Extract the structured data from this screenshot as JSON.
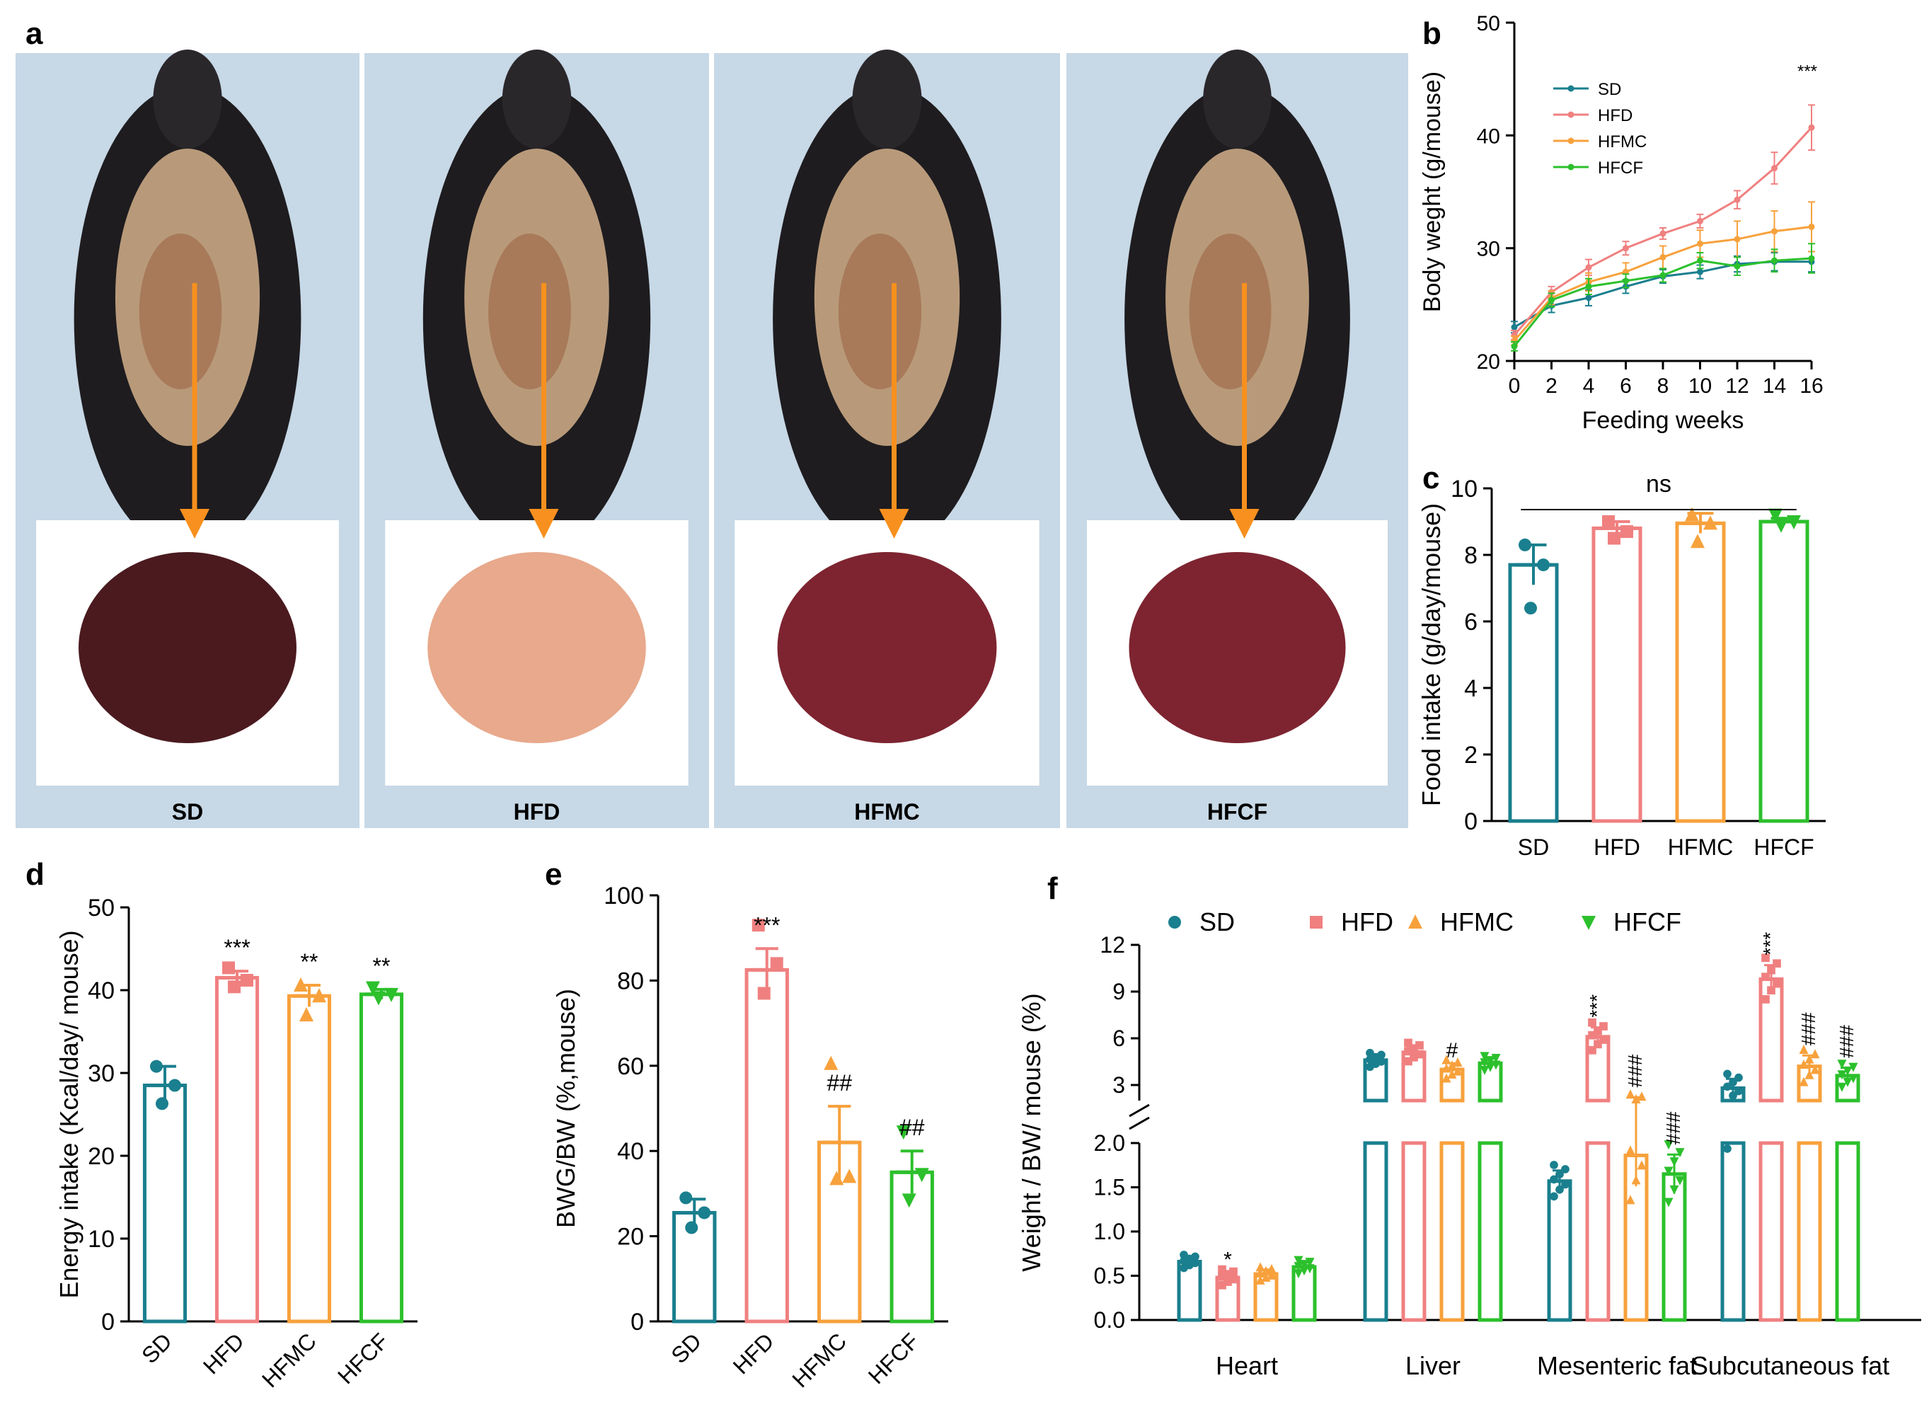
{
  "colors": {
    "SD": "#1a7f8e",
    "HFD": "#f08080",
    "HFMC": "#f7a13c",
    "HFCF": "#2cc02c",
    "arrow": "#f7901e",
    "photo_bg": "#c7d8e6",
    "liver_dark": "#4a1a1f",
    "liver_red": "#7d2430",
    "liver_light": "#e8a98c"
  },
  "panel_a": {
    "letter": "a",
    "groups": [
      {
        "label": "SD",
        "liver": "liver_dark"
      },
      {
        "label": "HFD",
        "liver": "liver_light"
      },
      {
        "label": "HFMC",
        "liver": "liver_red"
      },
      {
        "label": "HFCF",
        "liver": "liver_red"
      }
    ]
  },
  "chart_data": [
    {
      "panel": "b",
      "type": "line",
      "letter": "b",
      "xlabel": "Feeding weeks",
      "ylabel": "Body weght (g/mouse)",
      "xlim": [
        0,
        16
      ],
      "ylim": [
        20,
        50
      ],
      "xticks": [
        "0",
        "2",
        "4",
        "6",
        "8",
        "10",
        "12",
        "14",
        "16"
      ],
      "yticks": [
        "20",
        "30",
        "40",
        "50"
      ],
      "x": [
        0,
        2,
        4,
        6,
        8,
        10,
        12,
        14,
        16
      ],
      "series": [
        {
          "name": "SD",
          "color": "SD",
          "values": [
            23.0,
            24.9,
            25.6,
            26.6,
            27.5,
            27.9,
            28.6,
            28.8,
            28.8
          ],
          "err": [
            0.5,
            0.6,
            0.7,
            0.6,
            0.6,
            0.6,
            0.7,
            0.8,
            0.9
          ]
        },
        {
          "name": "HFD",
          "color": "HFD",
          "values": [
            22.3,
            26.1,
            28.3,
            30.0,
            31.3,
            32.4,
            34.3,
            37.1,
            40.7
          ],
          "err": [
            0.4,
            0.5,
            0.7,
            0.6,
            0.5,
            0.6,
            0.8,
            1.4,
            2.0
          ]
        },
        {
          "name": "HFMC",
          "color": "HFMC",
          "values": [
            21.8,
            25.6,
            27.0,
            27.9,
            29.2,
            30.4,
            30.8,
            31.5,
            31.9
          ],
          "err": [
            0.4,
            0.6,
            0.8,
            0.8,
            1.0,
            1.2,
            1.6,
            1.8,
            2.2
          ]
        },
        {
          "name": "HFCF",
          "color": "HFCF",
          "values": [
            21.3,
            25.4,
            26.6,
            27.1,
            27.6,
            28.9,
            28.4,
            28.9,
            29.1
          ],
          "err": [
            0.4,
            0.6,
            0.7,
            0.6,
            0.6,
            0.7,
            0.8,
            1.0,
            1.3
          ]
        }
      ],
      "legend": "top-left",
      "annotation": "***"
    },
    {
      "panel": "c",
      "type": "bar",
      "letter": "c",
      "categories": [
        "SD",
        "HFD",
        "HFMC",
        "HFCF"
      ],
      "values": [
        7.7,
        8.8,
        8.95,
        9.0
      ],
      "err": [
        0.6,
        0.2,
        0.3,
        0.1
      ],
      "points": [
        [
          8.3,
          7.7,
          6.4
        ],
        [
          9.0,
          8.7,
          8.5
        ],
        [
          9.2,
          8.95,
          8.4
        ],
        [
          9.2,
          9.0,
          8.9
        ]
      ],
      "ylabel": "Food intake (g/day/mouse)",
      "ylim": [
        0,
        10
      ],
      "yticks": [
        "0",
        "2",
        "4",
        "6",
        "8",
        "10"
      ],
      "annotation": "ns"
    },
    {
      "panel": "d",
      "type": "bar",
      "letter": "d",
      "categories": [
        "SD",
        "HFD",
        "HFMC",
        "HFCF"
      ],
      "values": [
        28.5,
        41.5,
        39.3,
        39.5
      ],
      "err": [
        2.3,
        0.8,
        1.3,
        0.6
      ],
      "points": [
        [
          30.8,
          28.5,
          26.3
        ],
        [
          42.7,
          41.2,
          40.4
        ],
        [
          40.6,
          39.3,
          37.0
        ],
        [
          40.3,
          39.5,
          39.1
        ]
      ],
      "ylabel": "Energy intake (Kcal/day/ mouse)",
      "ylim": [
        0,
        50
      ],
      "yticks": [
        "0",
        "10",
        "20",
        "30",
        "40",
        "50"
      ],
      "sig": [
        "",
        "***",
        "**",
        "**"
      ]
    },
    {
      "panel": "e",
      "type": "bar",
      "letter": "e",
      "categories": [
        "SD",
        "HFD",
        "HFMC",
        "HFCF"
      ],
      "values": [
        25.5,
        82.5,
        42.0,
        35.0
      ],
      "err": [
        3.2,
        5.0,
        8.5,
        5.0
      ],
      "points": [
        [
          29.0,
          25.5,
          22.0
        ],
        [
          93.0,
          84.0,
          77.0
        ],
        [
          60.5,
          34.0,
          33.5
        ],
        [
          44.5,
          34.5,
          28.5
        ]
      ],
      "ylabel": "BWG/BW (%,mouse)",
      "ylim": [
        0,
        100
      ],
      "yticks": [
        "0",
        "20",
        "40",
        "60",
        "80",
        "100"
      ],
      "sig": [
        "",
        "***",
        "##",
        "##"
      ]
    },
    {
      "panel": "f",
      "type": "bar",
      "letter": "f",
      "groups": [
        "Heart",
        "Liver",
        "Mesenteric fat",
        "Subcutaneous fat"
      ],
      "series_names": [
        "SD",
        "HFD",
        "HFMC",
        "HFCF"
      ],
      "values": [
        [
          0.66,
          0.48,
          0.52,
          0.6
        ],
        [
          4.6,
          5.1,
          4.0,
          4.4
        ],
        [
          1.57,
          6.1,
          1.86,
          1.65
        ],
        [
          2.8,
          9.8,
          4.2,
          3.6
        ]
      ],
      "err": [
        [
          0.05,
          0.06,
          0.05,
          0.05
        ],
        [
          0.3,
          0.4,
          0.4,
          0.3
        ],
        [
          0.12,
          0.6,
          0.35,
          0.22
        ],
        [
          0.6,
          0.9,
          0.7,
          0.5
        ]
      ],
      "sig": [
        [
          "",
          "*",
          "",
          ""
        ],
        [
          "",
          "",
          "#",
          ""
        ],
        [
          "",
          "***",
          "###",
          "###"
        ],
        [
          "",
          "***",
          "###",
          "###"
        ]
      ],
      "ylabel": "Weight / BW/ mouse (%)",
      "ylim_lower": [
        0,
        2
      ],
      "ylim_upper": [
        2,
        12
      ],
      "yticks_lower": [
        "0.0",
        "0.5",
        "1.0",
        "1.5",
        "2.0"
      ],
      "yticks_upper": [
        "3",
        "6",
        "9",
        "12"
      ],
      "legend": "top"
    }
  ]
}
